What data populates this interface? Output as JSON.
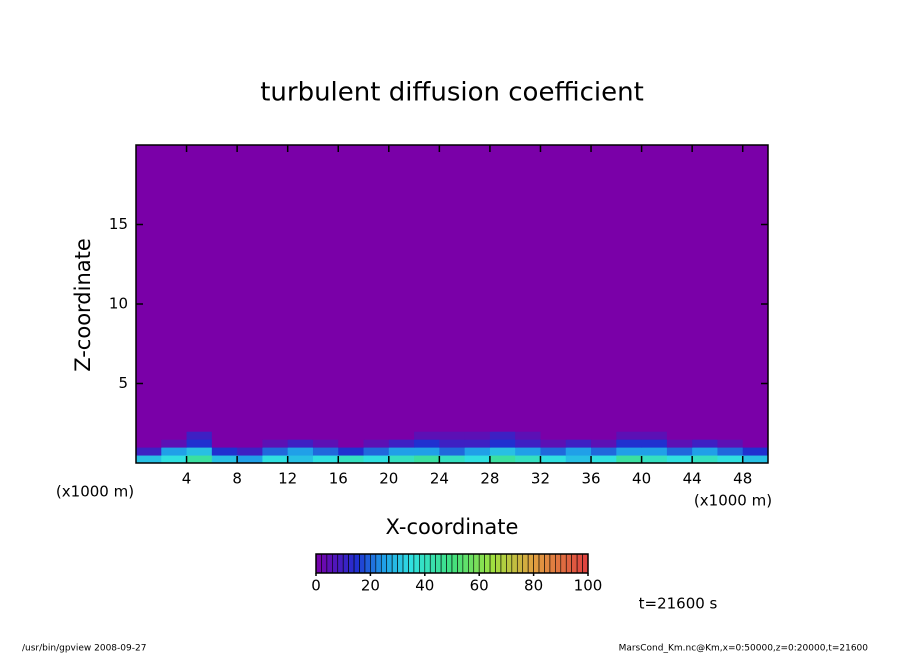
{
  "chart_data": {
    "type": "heatmap",
    "title": "turbulent diffusion coefficient",
    "x_label": "X-coordinate",
    "y_label": "Z-coordinate",
    "x_unit": "(x1000 m)",
    "y_unit": "(x1000 m)",
    "x_edges": [
      0,
      2,
      4,
      6,
      8,
      10,
      12,
      14,
      16,
      18,
      20,
      22,
      24,
      26,
      28,
      30,
      32,
      34,
      36,
      38,
      40,
      42,
      44,
      46,
      48,
      50
    ],
    "y_edges": [
      0,
      0.5,
      1,
      1.5,
      2,
      20
    ],
    "z": [
      [
        30,
        35,
        45,
        30,
        25,
        35,
        30,
        35,
        40,
        35,
        40,
        45,
        40,
        35,
        45,
        40,
        35,
        30,
        35,
        45,
        40,
        35,
        40,
        35,
        30
      ],
      [
        10,
        25,
        30,
        15,
        10,
        20,
        25,
        20,
        15,
        20,
        25,
        25,
        20,
        25,
        30,
        25,
        20,
        25,
        20,
        25,
        25,
        20,
        25,
        20,
        15
      ],
      [
        0,
        5,
        15,
        0,
        0,
        5,
        10,
        5,
        0,
        5,
        10,
        15,
        10,
        10,
        15,
        10,
        5,
        10,
        5,
        15,
        15,
        5,
        10,
        5,
        0
      ],
      [
        0,
        0,
        10,
        0,
        0,
        0,
        0,
        0,
        0,
        0,
        0,
        5,
        5,
        5,
        10,
        5,
        0,
        0,
        0,
        5,
        5,
        0,
        0,
        0,
        0
      ],
      [
        0,
        0,
        0,
        0,
        0,
        0,
        0,
        0,
        0,
        0,
        0,
        0,
        0,
        0,
        0,
        0,
        0,
        0,
        0,
        0,
        0,
        0,
        0,
        0,
        0
      ]
    ],
    "xlim": [
      0,
      50
    ],
    "ylim": [
      0,
      20
    ],
    "xticks": [
      4,
      8,
      12,
      16,
      20,
      24,
      28,
      32,
      36,
      40,
      44,
      48
    ],
    "yticks": [
      5,
      10,
      15
    ],
    "colorbar": {
      "lim": [
        0,
        100
      ],
      "ticks": [
        0,
        20,
        40,
        60,
        80,
        100
      ]
    },
    "colormap": [
      [
        0,
        "#7a00a8"
      ],
      [
        15,
        "#2030d0"
      ],
      [
        25,
        "#20a0e8"
      ],
      [
        35,
        "#30e0e0"
      ],
      [
        50,
        "#40e080"
      ],
      [
        65,
        "#a0e040"
      ],
      [
        80,
        "#e0a040"
      ],
      [
        100,
        "#e04040"
      ]
    ]
  },
  "annotations": {
    "time": "t=21600 s",
    "footer_left": "/usr/bin/gpview  2008-09-27",
    "footer_right": "MarsCond_Km.nc@Km,x=0:50000,z=0:20000,t=21600"
  }
}
